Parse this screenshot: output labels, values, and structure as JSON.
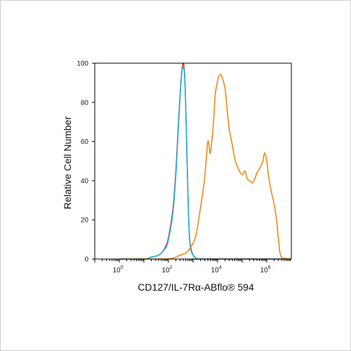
{
  "chart_data": {
    "type": "line",
    "title": "",
    "xlabel": "CD127/IL-7Rα-ABflo® 594",
    "ylabel": "Relative Cell Number",
    "x_scale": "log",
    "xlim": [
      0.1,
      10000000
    ],
    "ylim": [
      0,
      100
    ],
    "y_ticks": [
      0,
      20,
      40,
      60,
      80,
      100
    ],
    "x_ticks": [
      {
        "base": "10",
        "exp": "0",
        "value": 1
      },
      {
        "base": "10",
        "exp": "2",
        "value": 100
      },
      {
        "base": "10",
        "exp": "4",
        "value": 10000
      },
      {
        "base": "10",
        "exp": "6",
        "value": 1000000
      }
    ],
    "grid": false,
    "legend": "none",
    "series": [
      {
        "color": "#e8312f",
        "x": [
          1,
          10,
          20,
          40,
          60,
          80,
          100,
          150,
          200,
          250,
          300,
          350,
          400,
          450,
          500,
          560,
          630,
          700,
          800,
          1000,
          1200,
          1500,
          2000,
          10000000
        ],
        "y": [
          0,
          0,
          1,
          2,
          4,
          7,
          11,
          25,
          45,
          68,
          85,
          96,
          100,
          95,
          80,
          55,
          30,
          14,
          6,
          2,
          1,
          0,
          0,
          0
        ]
      },
      {
        "color": "#1fb4e0",
        "x": [
          1,
          10,
          20,
          40,
          60,
          80,
          100,
          150,
          200,
          250,
          300,
          350,
          400,
          450,
          500,
          560,
          630,
          700,
          800,
          1000,
          1200,
          1500,
          2000,
          10000000
        ],
        "y": [
          0,
          0,
          1,
          2,
          4,
          6,
          10,
          23,
          43,
          66,
          84,
          95,
          98,
          94,
          79,
          54,
          29,
          13,
          5,
          2,
          1,
          0,
          0,
          0
        ]
      },
      {
        "color": "#ef8a17",
        "x": [
          1,
          40,
          100,
          200,
          300,
          500,
          700,
          1000,
          1300,
          1600,
          2000,
          2500,
          3000,
          3500,
          4000,
          4500,
          5000,
          6000,
          7000,
          8000,
          10000,
          12000,
          15000,
          20000,
          25000,
          30000,
          40000,
          50000,
          70000,
          100000,
          130000,
          160000,
          200000,
          250000,
          300000,
          350000,
          400000,
          500000,
          600000,
          700000,
          800000,
          900000,
          1000000,
          1200000,
          1500000,
          2000000,
          2500000,
          3000000,
          4000000,
          10000000
        ],
        "y": [
          0,
          0,
          0,
          1,
          2,
          3,
          5,
          8,
          12,
          18,
          26,
          34,
          42,
          52,
          60,
          58,
          54,
          62,
          72,
          84,
          91,
          94,
          93,
          87,
          75,
          66,
          58,
          51,
          46,
          43,
          45,
          41,
          40,
          39,
          40,
          42,
          44,
          46,
          48,
          50,
          54,
          53,
          50,
          42,
          35,
          28,
          20,
          10,
          1,
          0
        ]
      }
    ]
  }
}
